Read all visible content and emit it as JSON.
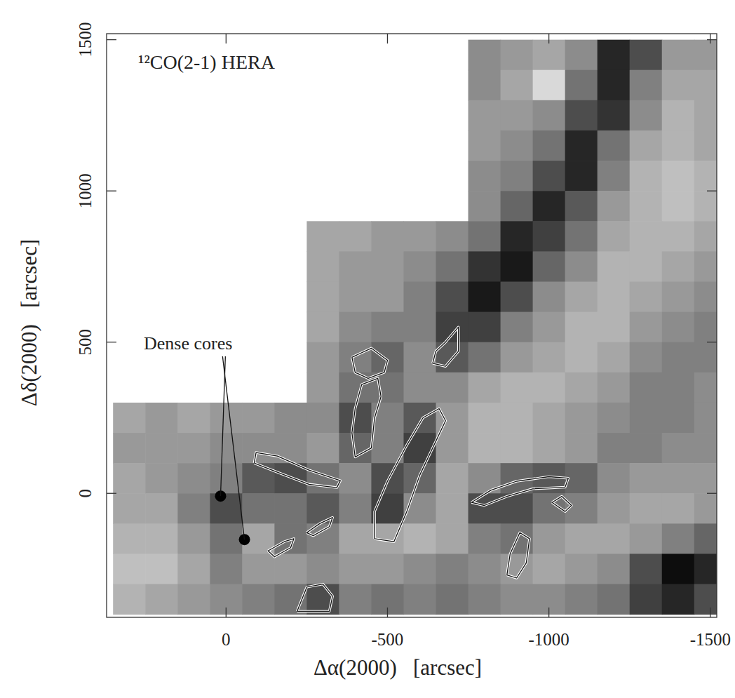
{
  "chart_data": {
    "type": "heatmap",
    "title": "¹²CO(2-1) HERA",
    "x_label": "Δα(2000)   [arcsec]",
    "y_label": "Δδ(2000)   [arcsec]",
    "xlim": [
      370,
      -1520
    ],
    "ylim": [
      -410,
      1520
    ],
    "xticks": [
      0,
      -500,
      -1000,
      -1500
    ],
    "yticks": [
      0,
      500,
      1000,
      1500
    ],
    "cells": {
      "x": [
        300,
        200,
        100,
        0,
        -100,
        -200,
        -300,
        -400,
        -500,
        -600,
        -700,
        -800,
        -900,
        -1000,
        -1100,
        -1200,
        -1300,
        -1400,
        -1500
      ],
      "y": [
        1450,
        1350,
        1250,
        1150,
        1050,
        950,
        850,
        750,
        650,
        550,
        450,
        350,
        250,
        150,
        50,
        -50,
        -150,
        -250,
        -350
      ],
      "zlim": [
        0,
        1
      ],
      "values": [
        [
          null,
          null,
          null,
          null,
          null,
          null,
          null,
          null,
          null,
          null,
          null,
          0.45,
          0.4,
          0.35,
          0.45,
          0.85,
          0.7,
          0.4,
          0.4
        ],
        [
          null,
          null,
          null,
          null,
          null,
          null,
          null,
          null,
          null,
          null,
          null,
          0.45,
          0.35,
          0.15,
          0.55,
          0.85,
          0.5,
          0.35,
          0.35
        ],
        [
          null,
          null,
          null,
          null,
          null,
          null,
          null,
          null,
          null,
          null,
          null,
          0.4,
          0.4,
          0.45,
          0.7,
          0.8,
          0.45,
          0.3,
          0.35
        ],
        [
          null,
          null,
          null,
          null,
          null,
          null,
          null,
          null,
          null,
          null,
          null,
          0.4,
          0.45,
          0.55,
          0.85,
          0.55,
          0.35,
          0.3,
          0.35
        ],
        [
          null,
          null,
          null,
          null,
          null,
          null,
          null,
          null,
          null,
          null,
          null,
          0.45,
          0.5,
          0.7,
          0.85,
          0.5,
          0.3,
          0.25,
          0.3
        ],
        [
          null,
          null,
          null,
          null,
          null,
          null,
          null,
          null,
          null,
          null,
          null,
          0.45,
          0.6,
          0.85,
          0.65,
          0.4,
          0.3,
          0.25,
          0.3
        ],
        [
          null,
          null,
          null,
          null,
          null,
          null,
          0.35,
          0.35,
          0.4,
          0.4,
          0.45,
          0.55,
          0.85,
          0.75,
          0.55,
          0.35,
          0.3,
          0.3,
          0.35
        ],
        [
          null,
          null,
          null,
          null,
          null,
          null,
          0.35,
          0.4,
          0.4,
          0.45,
          0.55,
          0.8,
          0.9,
          0.6,
          0.45,
          0.3,
          0.3,
          0.35,
          0.4
        ],
        [
          null,
          null,
          null,
          null,
          null,
          null,
          0.35,
          0.4,
          0.4,
          0.5,
          0.7,
          0.9,
          0.7,
          0.45,
          0.35,
          0.3,
          0.35,
          0.4,
          0.45
        ],
        [
          null,
          null,
          null,
          null,
          null,
          null,
          0.35,
          0.45,
          0.5,
          0.5,
          0.75,
          0.75,
          0.5,
          0.4,
          0.3,
          0.3,
          0.4,
          0.45,
          0.5
        ],
        [
          null,
          null,
          null,
          null,
          null,
          null,
          0.4,
          0.5,
          0.6,
          0.45,
          0.65,
          0.55,
          0.4,
          0.35,
          0.3,
          0.35,
          0.45,
          0.5,
          0.5
        ],
        [
          null,
          null,
          null,
          null,
          null,
          null,
          0.4,
          0.55,
          0.55,
          0.45,
          0.45,
          0.35,
          0.3,
          0.3,
          0.35,
          0.4,
          0.5,
          0.5,
          0.45
        ],
        [
          0.35,
          0.4,
          0.35,
          0.4,
          0.4,
          0.45,
          0.45,
          0.7,
          0.5,
          0.65,
          0.4,
          0.3,
          0.3,
          0.35,
          0.4,
          0.45,
          0.5,
          0.5,
          0.45
        ],
        [
          0.4,
          0.4,
          0.4,
          0.45,
          0.45,
          0.45,
          0.4,
          0.6,
          0.5,
          0.75,
          0.4,
          0.3,
          0.3,
          0.35,
          0.4,
          0.5,
          0.5,
          0.45,
          0.45
        ],
        [
          0.35,
          0.4,
          0.45,
          0.5,
          0.65,
          0.7,
          0.55,
          0.45,
          0.7,
          0.6,
          0.35,
          0.45,
          0.6,
          0.65,
          0.6,
          0.45,
          0.4,
          0.4,
          0.4
        ],
        [
          0.35,
          0.35,
          0.5,
          0.7,
          0.55,
          0.55,
          0.65,
          0.5,
          0.75,
          0.45,
          0.35,
          0.7,
          0.7,
          0.55,
          0.5,
          0.4,
          0.35,
          0.35,
          0.4
        ],
        [
          0.3,
          0.3,
          0.4,
          0.55,
          0.35,
          0.55,
          0.5,
          0.35,
          0.35,
          0.3,
          0.35,
          0.5,
          0.55,
          0.4,
          0.35,
          0.35,
          0.4,
          0.5,
          0.6
        ],
        [
          0.25,
          0.25,
          0.35,
          0.5,
          0.4,
          0.4,
          0.45,
          0.4,
          0.4,
          0.45,
          0.5,
          0.45,
          0.4,
          0.35,
          0.4,
          0.45,
          0.7,
          0.95,
          0.85
        ],
        [
          0.3,
          0.35,
          0.4,
          0.45,
          0.5,
          0.55,
          0.7,
          0.5,
          0.55,
          0.5,
          0.55,
          0.5,
          0.45,
          0.45,
          0.5,
          0.55,
          0.75,
          0.85,
          0.7
        ]
      ]
    },
    "contours": [
      {
        "x": [
          -87,
          -170,
          -257,
          -343,
          -354,
          -257,
          -159,
          -93,
          -87
        ],
        "y": [
          100,
          65,
          30,
          19,
          42,
          77,
          123,
          135,
          100
        ]
      },
      {
        "x": [
          -460,
          -520,
          -560,
          -600,
          -680,
          -660,
          -610,
          -560,
          -500,
          -460,
          -460
        ],
        "y": [
          -150,
          -160,
          -60,
          60,
          240,
          280,
          250,
          160,
          40,
          -60,
          -150
        ]
      },
      {
        "x": [
          -760,
          -820,
          -900,
          -1000,
          -1060,
          -1050,
          -950,
          -870,
          -800,
          -760
        ],
        "y": [
          -30,
          10,
          40,
          55,
          50,
          20,
          15,
          -10,
          -40,
          -30
        ]
      },
      {
        "x": [
          -390,
          -400,
          -420,
          -470,
          -480,
          -460,
          -450,
          -400,
          -390
        ],
        "y": [
          200,
          280,
          360,
          380,
          320,
          250,
          150,
          120,
          200
        ]
      },
      {
        "x": [
          -640,
          -680,
          -720,
          -720,
          -680,
          -650,
          -640
        ],
        "y": [
          430,
          420,
          470,
          550,
          500,
          470,
          430
        ]
      },
      {
        "x": [
          -390,
          -450,
          -500,
          -490,
          -440,
          -400,
          -390
        ],
        "y": [
          450,
          480,
          440,
          400,
          380,
          400,
          450
        ]
      },
      {
        "x": [
          -130,
          -180,
          -210,
          -200,
          -150,
          -130
        ],
        "y": [
          -190,
          -160,
          -150,
          -180,
          -210,
          -190
        ]
      },
      {
        "x": [
          -250,
          -290,
          -330,
          -320,
          -270,
          -250
        ],
        "y": [
          -130,
          -100,
          -80,
          -110,
          -140,
          -130
        ]
      },
      {
        "x": [
          -220,
          -250,
          -300,
          -330,
          -320,
          -220
        ],
        "y": [
          -390,
          -310,
          -300,
          -340,
          -390,
          -390
        ]
      },
      {
        "x": [
          -870,
          -880,
          -910,
          -940,
          -930,
          -900,
          -870
        ],
        "y": [
          -270,
          -200,
          -130,
          -150,
          -230,
          -280,
          -270
        ]
      },
      {
        "x": [
          -1010,
          -1040,
          -1070,
          -1050,
          -1010
        ],
        "y": [
          -30,
          -10,
          -40,
          -60,
          -30
        ]
      }
    ],
    "points": {
      "x": [
        17,
        -57
      ],
      "y": [
        -9,
        -153
      ]
    },
    "annotation": "Dense cores"
  }
}
